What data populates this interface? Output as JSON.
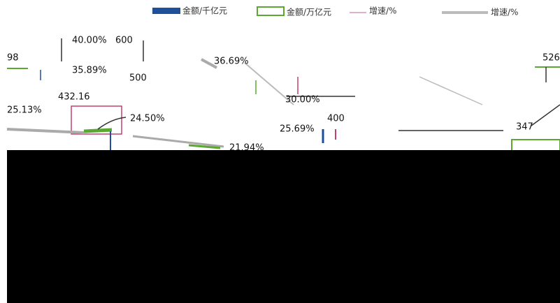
{
  "legend": [
    "金额/千亿元",
    "金额/万亿元",
    "增速/%",
    "增速/%"
  ],
  "labels": [
    "40.00%",
    "600",
    "98",
    "36.69%",
    "526",
    "35.89%",
    "500",
    "432.16",
    "25.13%",
    "24.50%",
    "30.00%",
    "400",
    "25.69%",
    "21.94%",
    "347"
  ]
}
